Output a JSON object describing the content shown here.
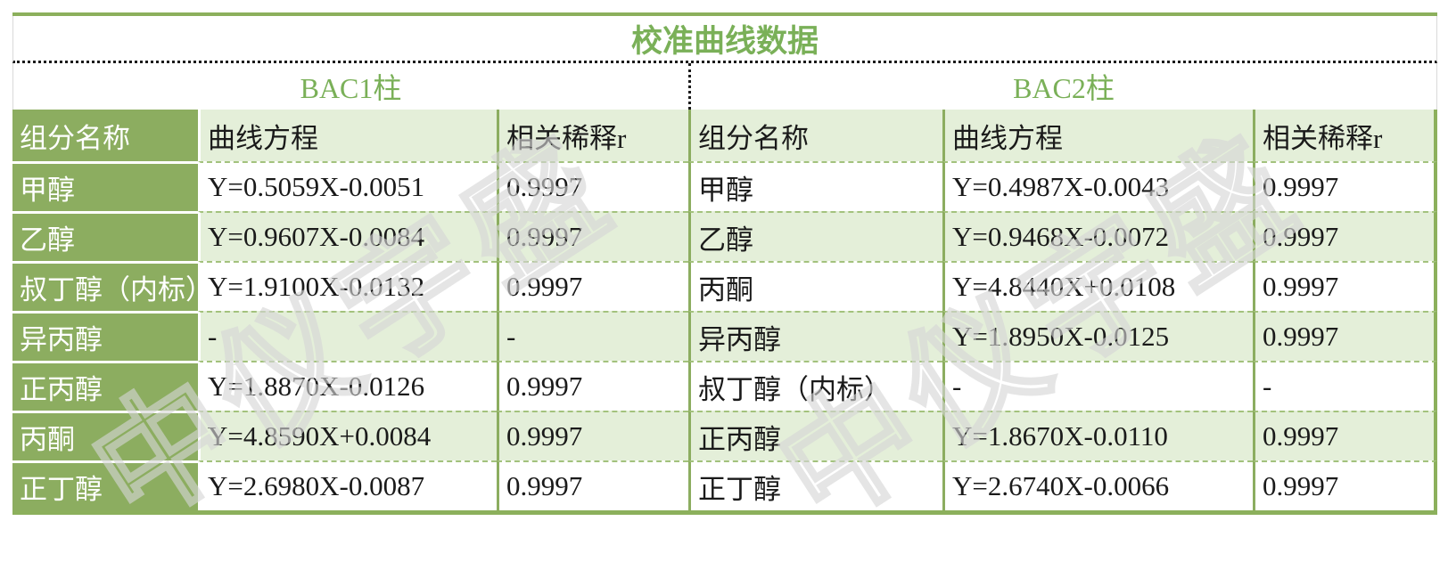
{
  "title": "校准曲线数据",
  "columns": {
    "component": "组分名称",
    "equation": "曲线方程",
    "correlation": "相关稀释r"
  },
  "left_table": {
    "header": "BAC1柱",
    "rows": [
      {
        "name": "甲醇",
        "eq": "Y=0.5059X-0.0051",
        "r": "0.9997"
      },
      {
        "name": "乙醇",
        "eq": "Y=0.9607X-0.0084",
        "r": "0.9997"
      },
      {
        "name": "叔丁醇（内标）",
        "eq": "Y=1.9100X-0.0132",
        "r": "0.9997"
      },
      {
        "name": "异丙醇",
        "eq": "-",
        "r": "-"
      },
      {
        "name": "正丙醇",
        "eq": "Y=1.8870X-0.0126",
        "r": "0.9997"
      },
      {
        "name": "丙酮",
        "eq": "Y=4.8590X+0.0084",
        "r": "0.9997"
      },
      {
        "name": "正丁醇",
        "eq": "Y=2.6980X-0.0087",
        "r": "0.9997"
      }
    ]
  },
  "right_table": {
    "header": "BAC2柱",
    "rows": [
      {
        "name": "甲醇",
        "eq": "Y=0.4987X-0.0043",
        "r": "0.9997"
      },
      {
        "name": "乙醇",
        "eq": "Y=0.9468X-0.0072",
        "r": "0.9997"
      },
      {
        "name": "丙酮",
        "eq": "Y=4.8440X+0.0108",
        "r": "0.9997"
      },
      {
        "name": "异丙醇",
        "eq": "Y=1.8950X-0.0125",
        "r": "0.9997"
      },
      {
        "name": "叔丁醇（内标）",
        "eq": "-",
        "r": "-"
      },
      {
        "name": "正丙醇",
        "eq": "Y=1.8670X-0.0110",
        "r": "0.9997"
      },
      {
        "name": "正丁醇",
        "eq": "Y=2.6740X-0.0066",
        "r": "0.9997"
      }
    ]
  },
  "watermark": {
    "text": "中仪宇盛"
  },
  "colors": {
    "dark_green_cell": "#8cad60",
    "light_green_cell": "#e4efd9",
    "green_text": "#7ab058",
    "green_border": "#8cb05c",
    "dashed_grid": "#a3c27d"
  }
}
